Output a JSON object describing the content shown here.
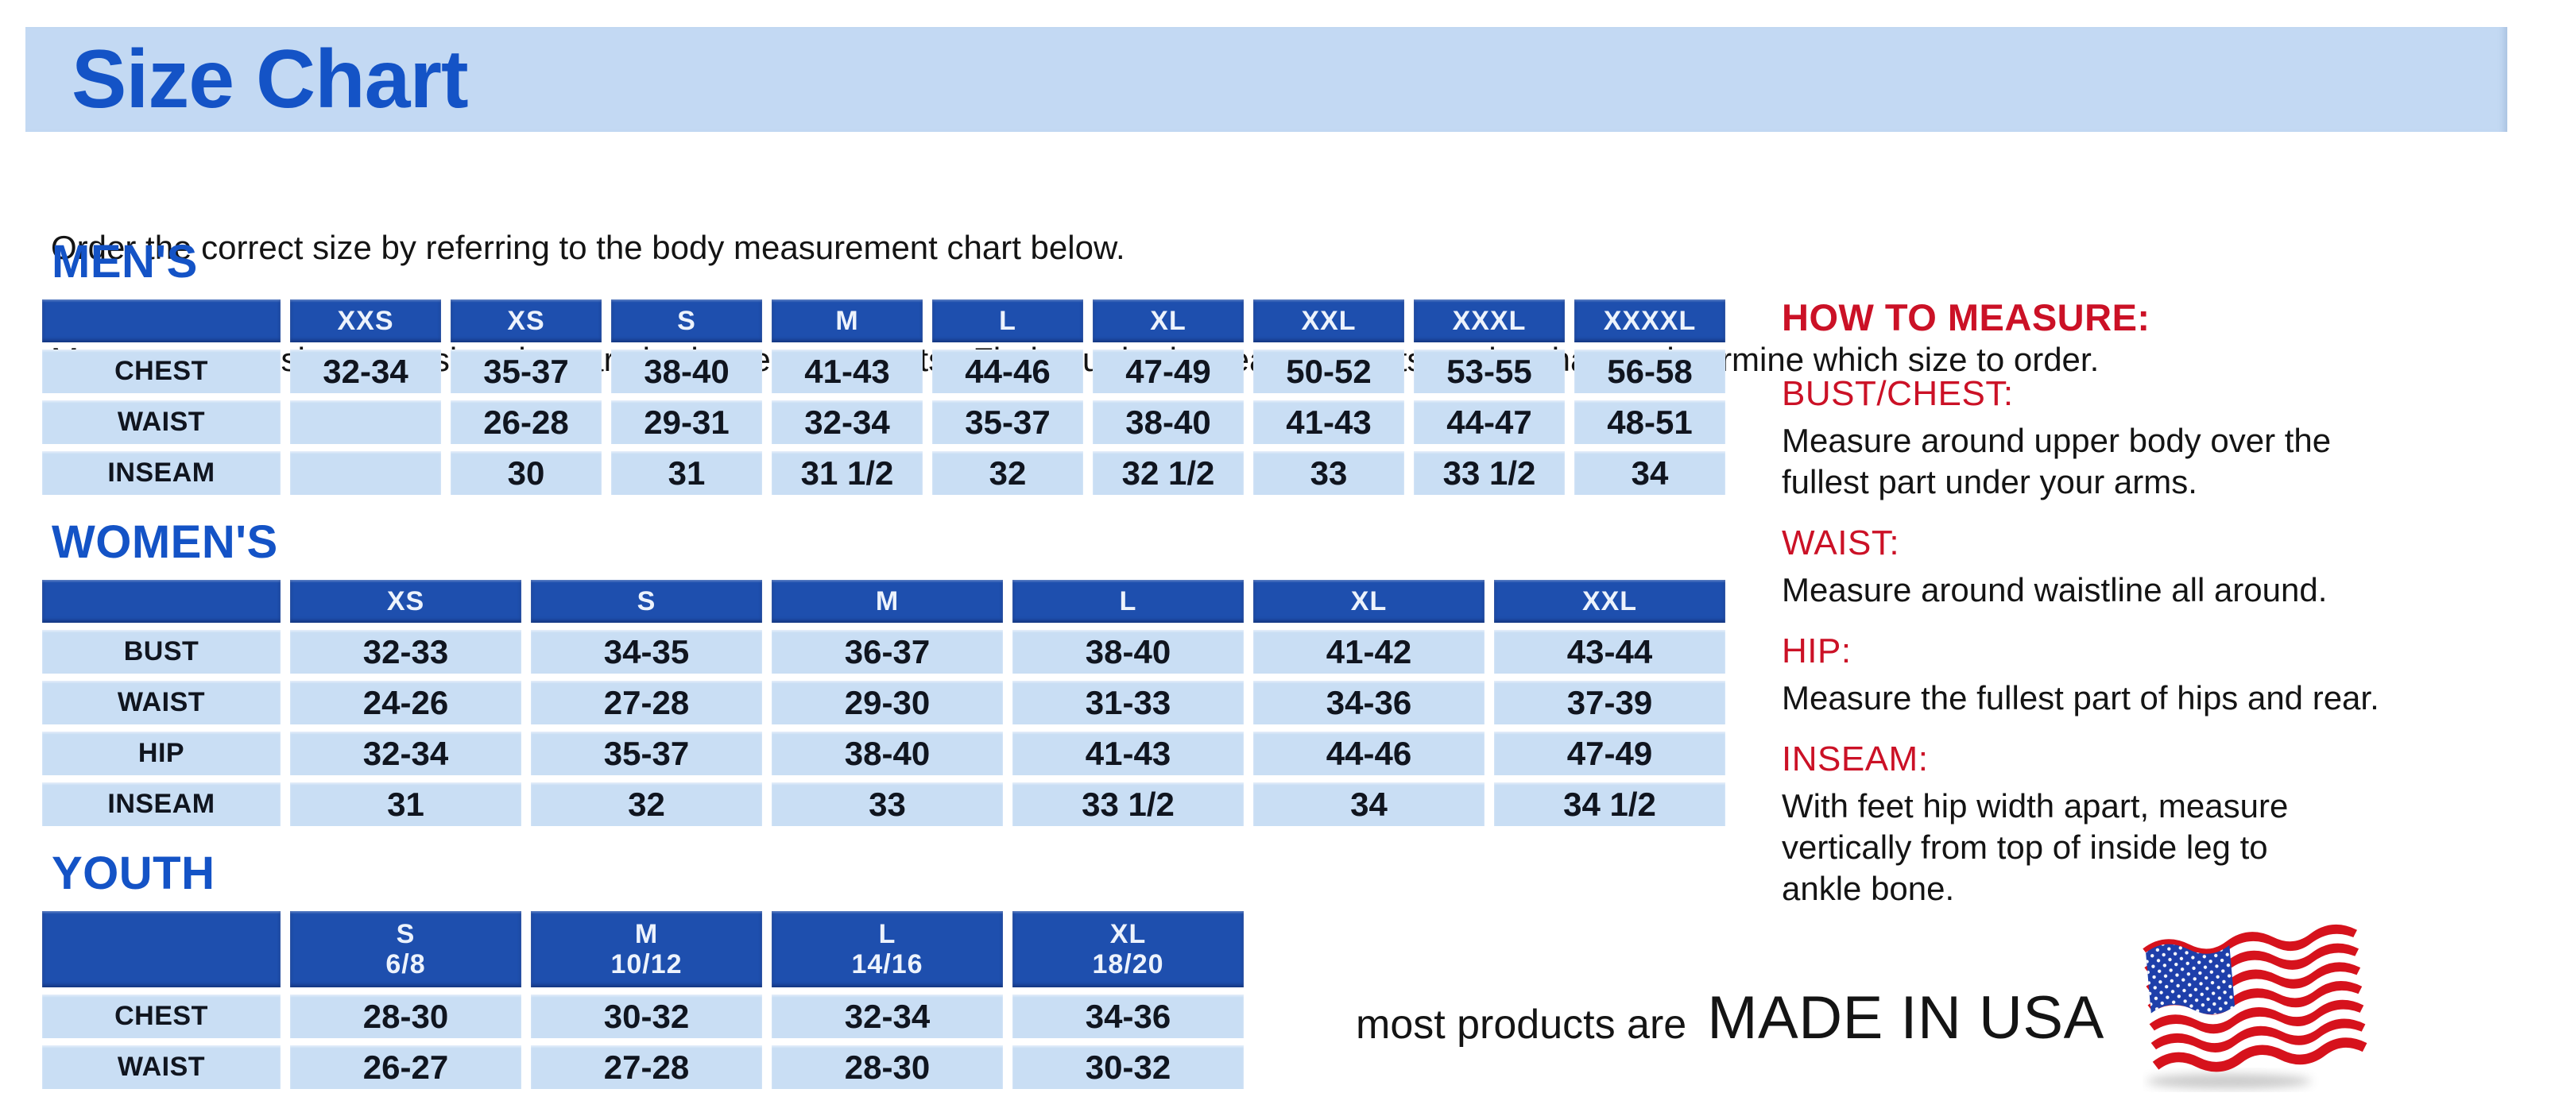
{
  "banner": {
    "title": "Size Chart"
  },
  "intro": {
    "line1": "Order the correct size by referring to the body measurement chart below.",
    "line2": "Measurements shown on size chart are body measurements.  Find your body measurements on the chart to determine which size to order."
  },
  "tables": {
    "mens": {
      "heading": "MEN'S",
      "headers": [
        "XXS",
        "XS",
        "S",
        "M",
        "L",
        "XL",
        "XXL",
        "XXXL",
        "XXXXL"
      ],
      "rows": [
        {
          "label": "CHEST",
          "values": [
            "32-34",
            "35-37",
            "38-40",
            "41-43",
            "44-46",
            "47-49",
            "50-52",
            "53-55",
            "56-58"
          ]
        },
        {
          "label": "WAIST",
          "values": [
            "",
            "26-28",
            "29-31",
            "32-34",
            "35-37",
            "38-40",
            "41-43",
            "44-47",
            "48-51"
          ]
        },
        {
          "label": "INSEAM",
          "values": [
            "",
            "30",
            "31",
            "31 1/2",
            "32",
            "32 1/2",
            "33",
            "33 1/2",
            "34"
          ]
        }
      ]
    },
    "womens": {
      "heading": "WOMEN'S",
      "headers": [
        "XS",
        "S",
        "M",
        "L",
        "XL",
        "XXL"
      ],
      "rows": [
        {
          "label": "BUST",
          "values": [
            "32-33",
            "34-35",
            "36-37",
            "38-40",
            "41-42",
            "43-44"
          ]
        },
        {
          "label": "WAIST",
          "values": [
            "24-26",
            "27-28",
            "29-30",
            "31-33",
            "34-36",
            "37-39"
          ]
        },
        {
          "label": "HIP",
          "values": [
            "32-34",
            "35-37",
            "38-40",
            "41-43",
            "44-46",
            "47-49"
          ]
        },
        {
          "label": "INSEAM",
          "values": [
            "31",
            "32",
            "33",
            "33 1/2",
            "34",
            "34 1/2"
          ]
        }
      ]
    },
    "youth": {
      "heading": "YOUTH",
      "headers": [
        "S\n6/8",
        "M\n10/12",
        "L\n14/16",
        "XL\n18/20"
      ],
      "rows": [
        {
          "label": "CHEST",
          "values": [
            "28-30",
            "30-32",
            "32-34",
            "34-36"
          ]
        },
        {
          "label": "WAIST",
          "values": [
            "26-27",
            "27-28",
            "28-30",
            "30-32"
          ]
        }
      ]
    }
  },
  "measure": {
    "heading": "HOW TO MEASURE:",
    "items": [
      {
        "label": "BUST/CHEST:",
        "text": "Measure around upper body over the\nfullest part under your arms."
      },
      {
        "label": "WAIST:",
        "text": "Measure around waistline all around."
      },
      {
        "label": "HIP:",
        "text": "Measure the fullest part of hips and rear."
      },
      {
        "label": "INSEAM:",
        "text": "With feet hip width apart, measure\nvertically from top of inside leg to\nankle bone."
      }
    ]
  },
  "footer": {
    "prefix": "most products are",
    "emphasis": "MADE IN USA",
    "flag_icon": "us-flag-icon"
  },
  "colors": {
    "banner_bg": "#c3d9f3",
    "heading_blue": "#1453c6",
    "table_header_bg": "#1e4fae",
    "cell_bg": "#c9def4",
    "accent_red": "#cb1126",
    "text_dark": "#10151f"
  }
}
